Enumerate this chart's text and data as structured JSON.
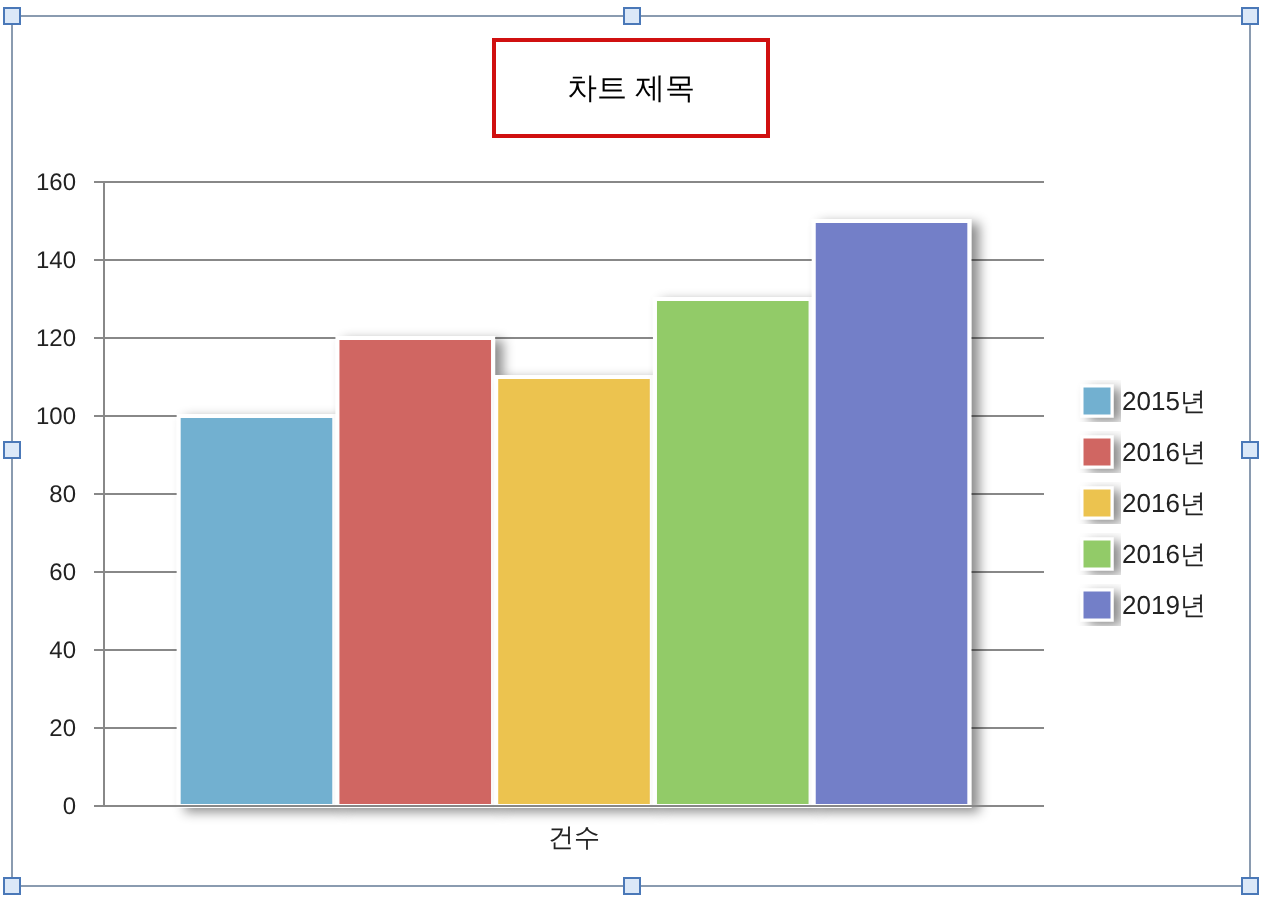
{
  "chart_data": {
    "type": "bar",
    "title": "차트 제목",
    "categories": [
      "건수"
    ],
    "series": [
      {
        "name": "2015년",
        "color": "#72b0d0",
        "values": [
          100
        ]
      },
      {
        "name": "2016년",
        "color": "#d06662",
        "values": [
          120
        ]
      },
      {
        "name": "2016년",
        "color": "#ecc350",
        "values": [
          110
        ]
      },
      {
        "name": "2016년",
        "color": "#92cb68",
        "values": [
          130
        ]
      },
      {
        "name": "2019년",
        "color": "#737fc8",
        "values": [
          150
        ]
      }
    ],
    "ylim": [
      0,
      160
    ],
    "yticks": [
      0,
      20,
      40,
      60,
      80,
      100,
      120,
      140,
      160
    ],
    "grid": "y",
    "legend": "right"
  }
}
